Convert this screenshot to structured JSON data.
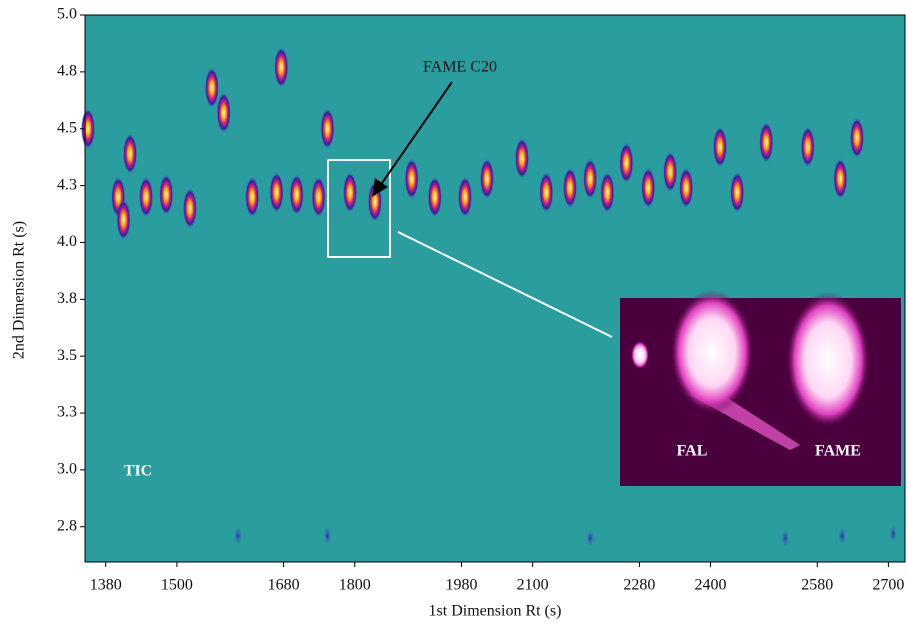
{
  "chart_data": {
    "type": "contour",
    "xlabel": "1st Dimension Rt (s)",
    "ylabel": "2nd Dimension Rt (s)",
    "xlim": [
      1345,
      2728
    ],
    "ylim": [
      2.595,
      5.0
    ],
    "xticks": [
      1380,
      1500,
      1680,
      1800,
      1980,
      2100,
      2280,
      2400,
      2580,
      2700
    ],
    "yticks": [
      {
        "value": 5.0,
        "label": "5.0"
      },
      {
        "value": 4.75,
        "label": "4.8"
      },
      {
        "value": 4.5,
        "label": "4.5"
      },
      {
        "value": 4.25,
        "label": "4.3"
      },
      {
        "value": 4.0,
        "label": "4.0"
      },
      {
        "value": 3.75,
        "label": "3.8"
      },
      {
        "value": 3.5,
        "label": "3.5"
      },
      {
        "value": 3.25,
        "label": "3.3"
      },
      {
        "value": 3.0,
        "label": "3.0"
      },
      {
        "value": 2.75,
        "label": "2.8"
      }
    ],
    "background": "#2a9d9f",
    "peaks": {
      "x": [
        1350,
        1401,
        1410,
        1421,
        1448,
        1482,
        1522,
        1559,
        1579,
        1627,
        1668,
        1676,
        1702,
        1739,
        1754,
        1792,
        1834,
        1896,
        1935,
        1986,
        2023,
        2082,
        2123,
        2163,
        2197,
        2226,
        2258,
        2295,
        2332,
        2359,
        2416,
        2445,
        2494,
        2564,
        2619,
        2647,
        1603,
        1754,
        2197,
        2526,
        2622,
        2708
      ],
      "y": [
        4.5,
        4.2,
        4.1,
        4.39,
        4.2,
        4.21,
        4.15,
        4.68,
        4.57,
        4.2,
        4.22,
        4.77,
        4.21,
        4.2,
        4.5,
        4.22,
        4.18,
        4.28,
        4.2,
        4.2,
        4.28,
        4.37,
        4.22,
        4.24,
        4.28,
        4.22,
        4.35,
        4.24,
        4.31,
        4.24,
        4.42,
        4.22,
        4.44,
        4.42,
        4.28,
        4.46,
        2.71,
        2.71,
        2.7,
        2.7,
        2.71,
        2.72
      ]
    },
    "annotations": {
      "target": "FAME C20",
      "trace": "TIC",
      "inset_left": "FAL",
      "inset_right": "FAME"
    }
  }
}
